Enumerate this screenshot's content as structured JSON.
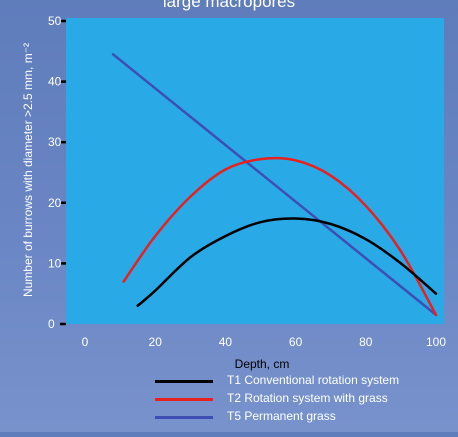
{
  "chart_data": {
    "type": "line",
    "title": "large macropores",
    "xlabel": "Depth, cm",
    "ylabel": "Number of burrows with diameter >2.5 mm, m⁻²",
    "xlim": [
      0,
      100
    ],
    "ylim": [
      0,
      50
    ],
    "xticks": [
      0,
      20,
      40,
      60,
      80,
      100
    ],
    "yticks": [
      0,
      10,
      20,
      30,
      40,
      50
    ],
    "grid": false,
    "plot_background": "#29a9e6",
    "legend_position": "bottom",
    "series": [
      {
        "name": "T1 Conventional rotation system",
        "color": "#000000",
        "x": [
          15,
          20,
          30,
          40,
          50,
          60,
          70,
          80,
          90,
          100
        ],
        "y": [
          3,
          5.5,
          11,
          14.5,
          16.8,
          17.4,
          16.5,
          14,
          10,
          5
        ]
      },
      {
        "name": "T2 Rotation system with grass",
        "color": "#e8201f",
        "x": [
          11,
          20,
          30,
          40,
          50,
          60,
          70,
          80,
          90,
          100
        ],
        "y": [
          7,
          14.5,
          21,
          25.5,
          27.2,
          27,
          24.5,
          19.5,
          12,
          1.5
        ]
      },
      {
        "name": "T5 Permanent grass",
        "color": "#3d4fb5",
        "x": [
          8,
          100
        ],
        "y": [
          44.5,
          1.5
        ]
      }
    ]
  }
}
